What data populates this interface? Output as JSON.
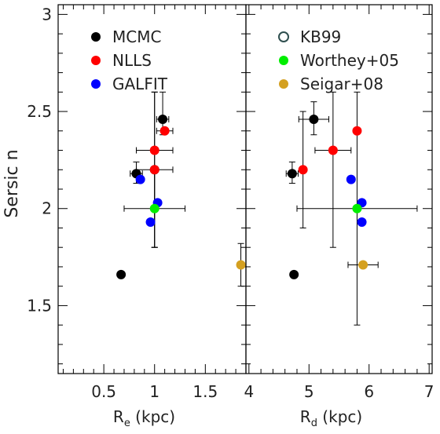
{
  "chart_data": [
    {
      "type": "scatter",
      "panel": "left",
      "xlabel": "R",
      "xlabel_sub": "e",
      "xlabel_unit": " (kpc)",
      "ylabel": "Sersic n",
      "xlim": [
        0.05,
        1.9
      ],
      "ylim": [
        1.15,
        3.05
      ],
      "xticks": [
        0.5,
        1,
        1.5
      ],
      "xtick_labels": [
        "0.5",
        "1",
        "1.5"
      ],
      "yticks": [
        1.5,
        2,
        2.5,
        3
      ],
      "ytick_labels": [
        "1.5",
        "2",
        "2.5",
        "3"
      ],
      "legend": [
        {
          "name": "MCMC",
          "color": "#000000",
          "marker": "filled"
        },
        {
          "name": "NLLS",
          "color": "#ff0000",
          "marker": "filled"
        },
        {
          "name": "GALFIT",
          "color": "#0000ff",
          "marker": "filled"
        }
      ],
      "legend_position": "top-left",
      "series": [
        {
          "name": "MCMC",
          "color": "#000000",
          "points": [
            {
              "x": 1.08,
              "y": 2.46,
              "xerr": 0.06,
              "yerr": [
                0.08,
                0.14
              ]
            },
            {
              "x": 0.82,
              "y": 2.18,
              "xerr": 0.06,
              "yerr": [
                0.05,
                0.06
              ]
            },
            {
              "x": 1.0,
              "y": 2.2
            },
            {
              "x": 0.67,
              "y": 1.66
            }
          ]
        },
        {
          "name": "NLLS",
          "color": "#ff0000",
          "points": [
            {
              "x": 1.1,
              "y": 2.4,
              "xerr": 0.08
            },
            {
              "x": 1.0,
              "y": 2.3,
              "xerr": 0.18,
              "yerr": [
                0.5,
                0.3
              ]
            },
            {
              "x": 1.0,
              "y": 2.2,
              "xerr": 0.18,
              "yerr": [
                0.4,
                0.4
              ]
            }
          ]
        },
        {
          "name": "GALFIT",
          "color": "#0000ff",
          "points": [
            {
              "x": 0.86,
              "y": 2.15
            },
            {
              "x": 1.03,
              "y": 2.03
            },
            {
              "x": 0.96,
              "y": 1.93
            }
          ]
        },
        {
          "name": "Worthey+05",
          "color": "#00ee00",
          "points": [
            {
              "x": 1.0,
              "y": 2.0,
              "xerr": 0.3,
              "yerr": [
                0.2,
                0.2
              ]
            }
          ]
        },
        {
          "name": "Seigar+08",
          "color": "#d4a020",
          "points": [
            {
              "x": 1.85,
              "y": 1.71,
              "yerr": [
                0.11,
                0.11
              ]
            }
          ]
        }
      ]
    },
    {
      "type": "scatter",
      "panel": "right",
      "xlabel": "R",
      "xlabel_sub": "d",
      "xlabel_unit": " (kpc)",
      "xlim": [
        3.95,
        7.05
      ],
      "ylim": [
        1.15,
        3.05
      ],
      "xticks": [
        4,
        5,
        6,
        7
      ],
      "xtick_labels": [
        "4",
        "5",
        "6",
        "7"
      ],
      "yticks": [
        1.5,
        2,
        2.5,
        3
      ],
      "legend": [
        {
          "name": "KB99",
          "color": "#2f4f4f",
          "marker": "open"
        },
        {
          "name": "Worthey+05",
          "color": "#00ee00",
          "marker": "filled"
        },
        {
          "name": "Seigar+08",
          "color": "#d4a020",
          "marker": "filled"
        }
      ],
      "legend_position": "top-left",
      "series": [
        {
          "name": "MCMC",
          "color": "#000000",
          "points": [
            {
              "x": 5.08,
              "y": 2.46,
              "xerr": 0.25,
              "yerr": [
                0.08,
                0.09
              ]
            },
            {
              "x": 4.72,
              "y": 2.18,
              "xerr": 0.1,
              "yerr": [
                0.05,
                0.06
              ]
            },
            {
              "x": 4.75,
              "y": 1.66
            }
          ]
        },
        {
          "name": "NLLS",
          "color": "#ff0000",
          "points": [
            {
              "x": 5.8,
              "y": 2.4,
              "yerr": [
                1.0,
                0.2
              ]
            },
            {
              "x": 5.4,
              "y": 2.3,
              "xerr": 0.3,
              "yerr": [
                0.5,
                0.3
              ]
            },
            {
              "x": 4.9,
              "y": 2.2,
              "yerr": [
                0.3,
                0.3
              ]
            }
          ]
        },
        {
          "name": "GALFIT",
          "color": "#0000ff",
          "points": [
            {
              "x": 5.7,
              "y": 2.15
            },
            {
              "x": 5.88,
              "y": 2.03
            },
            {
              "x": 5.88,
              "y": 1.93
            }
          ]
        },
        {
          "name": "Worthey+05",
          "color": "#00ee00",
          "points": [
            {
              "x": 5.8,
              "y": 2.0,
              "xerr": 1.0
            }
          ]
        },
        {
          "name": "Seigar+08",
          "color": "#d4a020",
          "points": [
            {
              "x": 5.9,
              "y": 1.71,
              "xerr": 0.25
            }
          ]
        }
      ]
    }
  ]
}
